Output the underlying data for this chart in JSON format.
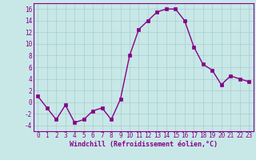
{
  "hours": [
    0,
    1,
    2,
    3,
    4,
    5,
    6,
    7,
    8,
    9,
    10,
    11,
    12,
    13,
    14,
    15,
    16,
    17,
    18,
    19,
    20,
    21,
    22,
    23
  ],
  "windchill": [
    1,
    -1,
    -3,
    -0.5,
    -3.5,
    -3,
    -1.5,
    -1,
    -3,
    0.5,
    8,
    12.5,
    14,
    15.5,
    16,
    16,
    14,
    9.5,
    6.5,
    5.5,
    3,
    4.5,
    4,
    3.5
  ],
  "line_color": "#880088",
  "marker": "s",
  "marker_size": 2.5,
  "bg_color": "#c8e8e8",
  "grid_color": "#aacccc",
  "text_color": "#880088",
  "xlabel": "Windchill (Refroidissement éolien,°C)",
  "ylim": [
    -5,
    17
  ],
  "yticks": [
    -4,
    -2,
    0,
    2,
    4,
    6,
    8,
    10,
    12,
    14,
    16
  ],
  "xlim": [
    -0.5,
    23.5
  ],
  "font_family": "monospace",
  "tick_fontsize": 5.5,
  "xlabel_fontsize": 6.0,
  "linewidth": 1.0
}
